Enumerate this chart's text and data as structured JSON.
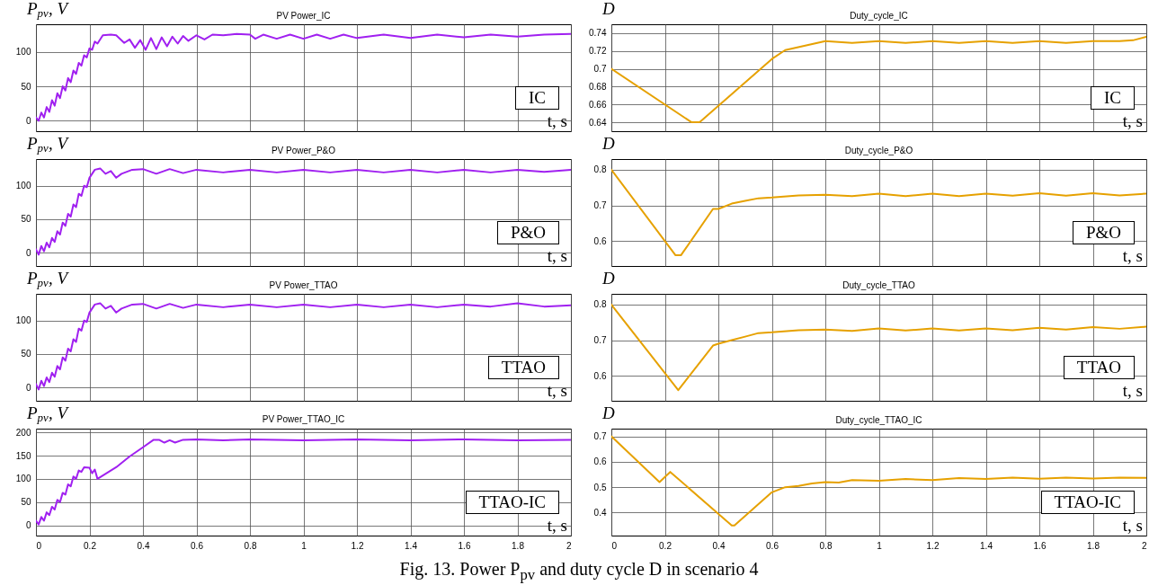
{
  "chart_data": [
    {
      "type": "line",
      "title": "PV Power_IC",
      "ylabel": "P$_{pv}$, V",
      "xlabel": "t, s",
      "annotations": [
        "IC"
      ],
      "xlim": [
        0,
        2
      ],
      "xticks": [
        0,
        0.2,
        0.4,
        0.6,
        0.8,
        1,
        1.2,
        1.4,
        1.6,
        1.8,
        2
      ],
      "ylim": [
        -15,
        140
      ],
      "yticks": [
        0,
        50,
        100
      ],
      "grid": true,
      "tick_labels": "y",
      "x": [
        0,
        0.01,
        0.02,
        0.03,
        0.04,
        0.05,
        0.06,
        0.07,
        0.08,
        0.09,
        0.1,
        0.11,
        0.12,
        0.13,
        0.14,
        0.15,
        0.16,
        0.17,
        0.18,
        0.19,
        0.2,
        0.21,
        0.22,
        0.23,
        0.25,
        0.28,
        0.3,
        0.33,
        0.35,
        0.37,
        0.39,
        0.41,
        0.43,
        0.45,
        0.47,
        0.49,
        0.51,
        0.53,
        0.55,
        0.57,
        0.6,
        0.63,
        0.66,
        0.7,
        0.75,
        0.8,
        0.82,
        0.85,
        0.9,
        0.95,
        1.0,
        1.05,
        1.1,
        1.15,
        1.2,
        1.3,
        1.4,
        1.5,
        1.6,
        1.7,
        1.8,
        1.9,
        2.0
      ],
      "series": [
        {
          "color": "#a020f0",
          "values": [
            5,
            0,
            12,
            5,
            20,
            13,
            30,
            22,
            40,
            33,
            50,
            44,
            62,
            56,
            73,
            68,
            84,
            80,
            95,
            92,
            105,
            103,
            115,
            112,
            124,
            125,
            124,
            113,
            118,
            106,
            117,
            103,
            120,
            104,
            121,
            108,
            122,
            112,
            123,
            116,
            124,
            118,
            125,
            124,
            126,
            125,
            119,
            125,
            119,
            125,
            119,
            125,
            119,
            125,
            120,
            125,
            120,
            125,
            121,
            125,
            122,
            125,
            126
          ]
        }
      ]
    },
    {
      "type": "line",
      "title": "Duty_cycle_IC",
      "ylabel": "D",
      "xlabel": "t, s",
      "annotations": [
        "IC"
      ],
      "xlim": [
        0,
        2
      ],
      "xticks": [
        0,
        0.2,
        0.4,
        0.6,
        0.8,
        1,
        1.2,
        1.4,
        1.6,
        1.8,
        2
      ],
      "ylim": [
        0.63,
        0.75
      ],
      "yticks": [
        0.64,
        0.66,
        0.68,
        0.7,
        0.72,
        0.74
      ],
      "grid": true,
      "tick_labels": "y",
      "x": [
        0,
        0.3,
        0.33,
        0.6,
        0.65,
        0.8,
        0.9,
        1.0,
        1.1,
        1.2,
        1.3,
        1.4,
        1.5,
        1.6,
        1.7,
        1.8,
        1.9,
        1.95,
        2.0
      ],
      "series": [
        {
          "color": "#e6a100",
          "values": [
            0.7,
            0.64,
            0.64,
            0.711,
            0.721,
            0.731,
            0.729,
            0.731,
            0.729,
            0.731,
            0.729,
            0.731,
            0.729,
            0.731,
            0.729,
            0.731,
            0.731,
            0.732,
            0.736
          ]
        }
      ]
    },
    {
      "type": "line",
      "title": "PV Power_P&O",
      "ylabel": "P$_{pv}$, V",
      "xlabel": "t, s",
      "annotations": [
        "P&O"
      ],
      "xlim": [
        0,
        2
      ],
      "xticks": [
        0,
        0.2,
        0.4,
        0.6,
        0.8,
        1,
        1.2,
        1.4,
        1.6,
        1.8,
        2
      ],
      "ylim": [
        -20,
        140
      ],
      "yticks": [
        0,
        50,
        100
      ],
      "grid": true,
      "tick_labels": "y",
      "x": [
        0,
        0.01,
        0.02,
        0.03,
        0.04,
        0.05,
        0.06,
        0.07,
        0.08,
        0.09,
        0.1,
        0.11,
        0.12,
        0.13,
        0.14,
        0.15,
        0.16,
        0.17,
        0.18,
        0.19,
        0.2,
        0.22,
        0.24,
        0.26,
        0.28,
        0.3,
        0.32,
        0.36,
        0.4,
        0.45,
        0.5,
        0.55,
        0.6,
        0.7,
        0.8,
        0.9,
        1.0,
        1.1,
        1.2,
        1.3,
        1.4,
        1.5,
        1.6,
        1.7,
        1.8,
        1.9,
        2.0
      ],
      "series": [
        {
          "color": "#a020f0",
          "values": [
            5,
            -3,
            10,
            2,
            15,
            8,
            22,
            16,
            32,
            27,
            45,
            40,
            58,
            54,
            72,
            68,
            88,
            85,
            100,
            98,
            112,
            124,
            126,
            118,
            122,
            112,
            118,
            124,
            125,
            118,
            125,
            119,
            124,
            120,
            124,
            120,
            124,
            120,
            124,
            120,
            124,
            120,
            124,
            120,
            124,
            121,
            124
          ]
        }
      ]
    },
    {
      "type": "line",
      "title": "Duty_cycle_P&O",
      "ylabel": "D",
      "xlabel": "t, s",
      "annotations": [
        "P&O"
      ],
      "xlim": [
        0,
        2
      ],
      "xticks": [
        0,
        0.2,
        0.4,
        0.6,
        0.8,
        1,
        1.2,
        1.4,
        1.6,
        1.8,
        2
      ],
      "ylim": [
        0.53,
        0.83
      ],
      "yticks": [
        0.6,
        0.7,
        0.8
      ],
      "grid": true,
      "tick_labels": "y",
      "x": [
        0,
        0.24,
        0.26,
        0.38,
        0.4,
        0.45,
        0.5,
        0.55,
        0.6,
        0.7,
        0.8,
        0.9,
        1.0,
        1.1,
        1.2,
        1.3,
        1.4,
        1.5,
        1.6,
        1.7,
        1.8,
        1.9,
        2.0
      ],
      "series": [
        {
          "color": "#e6a100",
          "values": [
            0.8,
            0.56,
            0.56,
            0.69,
            0.69,
            0.705,
            0.713,
            0.72,
            0.722,
            0.728,
            0.73,
            0.726,
            0.733,
            0.726,
            0.733,
            0.726,
            0.733,
            0.727,
            0.734,
            0.727,
            0.734,
            0.728,
            0.733
          ]
        }
      ]
    },
    {
      "type": "line",
      "title": "PV Power_TTAO",
      "ylabel": "P$_{pv}$, V",
      "xlabel": "t, s",
      "annotations": [
        "TTAO"
      ],
      "xlim": [
        0,
        2
      ],
      "xticks": [
        0,
        0.2,
        0.4,
        0.6,
        0.8,
        1,
        1.2,
        1.4,
        1.6,
        1.8,
        2
      ],
      "ylim": [
        -20,
        140
      ],
      "yticks": [
        0,
        50,
        100
      ],
      "grid": true,
      "tick_labels": "y",
      "x": [
        0,
        0.01,
        0.02,
        0.03,
        0.04,
        0.05,
        0.06,
        0.07,
        0.08,
        0.09,
        0.1,
        0.11,
        0.12,
        0.13,
        0.14,
        0.15,
        0.16,
        0.17,
        0.18,
        0.19,
        0.2,
        0.22,
        0.24,
        0.26,
        0.28,
        0.3,
        0.32,
        0.36,
        0.4,
        0.45,
        0.5,
        0.55,
        0.6,
        0.7,
        0.8,
        0.9,
        1.0,
        1.1,
        1.2,
        1.3,
        1.4,
        1.5,
        1.6,
        1.7,
        1.8,
        1.9,
        2.0
      ],
      "series": [
        {
          "color": "#a020f0",
          "values": [
            5,
            -3,
            10,
            2,
            15,
            8,
            22,
            16,
            32,
            27,
            45,
            40,
            58,
            54,
            72,
            68,
            88,
            85,
            100,
            98,
            112,
            124,
            126,
            118,
            122,
            112,
            118,
            124,
            125,
            118,
            125,
            119,
            124,
            120,
            124,
            120,
            124,
            120,
            124,
            120,
            124,
            120,
            124,
            121,
            126,
            121,
            123
          ]
        }
      ]
    },
    {
      "type": "line",
      "title": "Duty_cycle_TTAO",
      "ylabel": "D",
      "xlabel": "t, s",
      "annotations": [
        "TTAO"
      ],
      "xlim": [
        0,
        2
      ],
      "xticks": [
        0,
        0.2,
        0.4,
        0.6,
        0.8,
        1,
        1.2,
        1.4,
        1.6,
        1.8,
        2
      ],
      "ylim": [
        0.53,
        0.83
      ],
      "yticks": [
        0.6,
        0.7,
        0.8
      ],
      "grid": true,
      "tick_labels": "y",
      "x": [
        0,
        0.01,
        0.25,
        0.38,
        0.4,
        0.45,
        0.5,
        0.55,
        0.6,
        0.7,
        0.8,
        0.9,
        1.0,
        1.1,
        1.2,
        1.3,
        1.4,
        1.5,
        1.6,
        1.7,
        1.8,
        1.9,
        2.0
      ],
      "series": [
        {
          "color": "#e6a100",
          "values": [
            0.8,
            0.79,
            0.56,
            0.685,
            0.69,
            0.7,
            0.71,
            0.72,
            0.722,
            0.728,
            0.73,
            0.726,
            0.733,
            0.727,
            0.733,
            0.727,
            0.733,
            0.728,
            0.735,
            0.73,
            0.737,
            0.732,
            0.738
          ]
        }
      ]
    },
    {
      "type": "line",
      "title": "PV Power_TTAO_IC",
      "ylabel": "P$_{pv}$, V",
      "xlabel": "t, s",
      "annotations": [
        "TTAO-IC",
        "Fig. 13. Power P$_{pv}$ and duty cycle D in scenario 4"
      ],
      "xlim": [
        0,
        2
      ],
      "xticks": [
        0,
        0.2,
        0.4,
        0.6,
        0.8,
        1,
        1.2,
        1.4,
        1.6,
        1.8,
        2
      ],
      "ylim": [
        -22,
        208
      ],
      "yticks": [
        0,
        50,
        100,
        150,
        200
      ],
      "grid": true,
      "x": [
        0,
        0.01,
        0.02,
        0.03,
        0.04,
        0.05,
        0.06,
        0.07,
        0.08,
        0.09,
        0.1,
        0.11,
        0.12,
        0.13,
        0.14,
        0.15,
        0.16,
        0.17,
        0.18,
        0.2,
        0.21,
        0.22,
        0.23,
        0.3,
        0.35,
        0.4,
        0.44,
        0.46,
        0.48,
        0.5,
        0.52,
        0.55,
        0.6,
        0.7,
        0.8,
        1.0,
        1.2,
        1.4,
        1.6,
        1.8,
        2.0
      ],
      "series": [
        {
          "color": "#a020f0",
          "values": [
            10,
            2,
            18,
            10,
            28,
            22,
            40,
            34,
            55,
            50,
            70,
            66,
            88,
            84,
            105,
            100,
            118,
            115,
            125,
            124,
            112,
            120,
            100,
            125,
            148,
            168,
            184,
            184,
            178,
            183,
            178,
            184,
            185,
            183,
            185,
            183,
            185,
            183,
            185,
            183,
            184
          ]
        }
      ]
    },
    {
      "type": "line",
      "title": "Duty_cycle_TTAO_IC",
      "ylabel": "D",
      "xlabel": "t, s",
      "annotations": [
        "TTAO-IC"
      ],
      "xlim": [
        0,
        2
      ],
      "xticks": [
        0,
        0.2,
        0.4,
        0.6,
        0.8,
        1,
        1.2,
        1.4,
        1.6,
        1.8,
        2
      ],
      "ylim": [
        0.31,
        0.73
      ],
      "yticks": [
        0.4,
        0.5,
        0.6,
        0.7
      ],
      "grid": true,
      "x": [
        0,
        0.18,
        0.22,
        0.45,
        0.46,
        0.6,
        0.65,
        0.7,
        0.75,
        0.8,
        0.85,
        0.9,
        1.0,
        1.1,
        1.2,
        1.3,
        1.4,
        1.5,
        1.6,
        1.7,
        1.8,
        1.9,
        2.0
      ],
      "series": [
        {
          "color": "#e6a100",
          "values": [
            0.7,
            0.52,
            0.56,
            0.35,
            0.35,
            0.48,
            0.5,
            0.505,
            0.515,
            0.52,
            0.518,
            0.528,
            0.525,
            0.532,
            0.528,
            0.536,
            0.532,
            0.538,
            0.533,
            0.538,
            0.534,
            0.538,
            0.537
          ]
        }
      ]
    }
  ]
}
